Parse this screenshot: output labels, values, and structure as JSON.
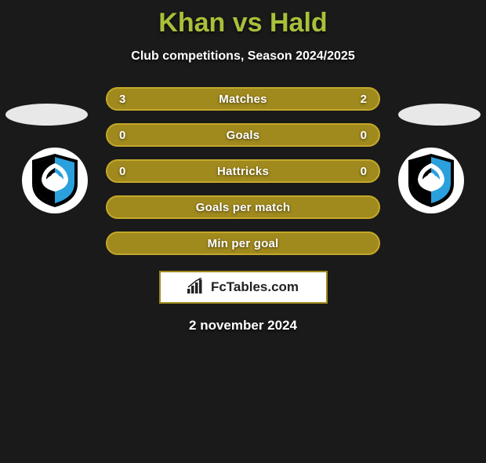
{
  "header": {
    "title": "Khan vs Hald",
    "title_color": "#a8c03a",
    "subtitle": "Club competitions, Season 2024/2025"
  },
  "stats": {
    "row_fill_color": "#a08a1e",
    "row_border_color": "#c4a82a",
    "rows": [
      {
        "left": "3",
        "label": "Matches",
        "right": "2"
      },
      {
        "left": "0",
        "label": "Goals",
        "right": "0"
      },
      {
        "left": "0",
        "label": "Hattricks",
        "right": "0"
      },
      {
        "left": "",
        "label": "Goals per match",
        "right": ""
      },
      {
        "left": "",
        "label": "Min per goal",
        "right": ""
      }
    ]
  },
  "brand": {
    "text": "FcTables.com",
    "border_color": "#a08a1e"
  },
  "date": "2 november 2024",
  "club_badge": {
    "shield_blue": "#2aa0dd",
    "shield_black": "#000000",
    "swan_white": "#ffffff"
  },
  "background": "#1a1a1a"
}
